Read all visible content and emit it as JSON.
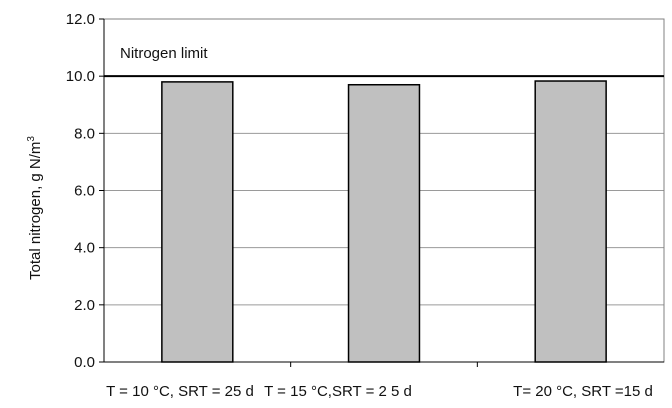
{
  "chart_data": {
    "type": "bar",
    "categories": [
      "T = 10 °C, SRT = 25 d",
      "T =  15 °C,SRT = 2 5 d",
      "T= 20 °C, SRT  =15 d"
    ],
    "values": [
      9.8,
      9.7,
      9.83
    ],
    "ylabel": "Total nitrogen, g N/m",
    "ylabel_superscript": "3",
    "ylim": [
      0.0,
      12.0
    ],
    "yticks": [
      "0.0",
      "2.0",
      "4.0",
      "6.0",
      "8.0",
      "10.0",
      "12.0"
    ],
    "grid": true,
    "bar_color": "#c0c0c0",
    "limit_line": {
      "value": 10.0,
      "label": "Nitrogen limit",
      "color": "#000000"
    }
  }
}
